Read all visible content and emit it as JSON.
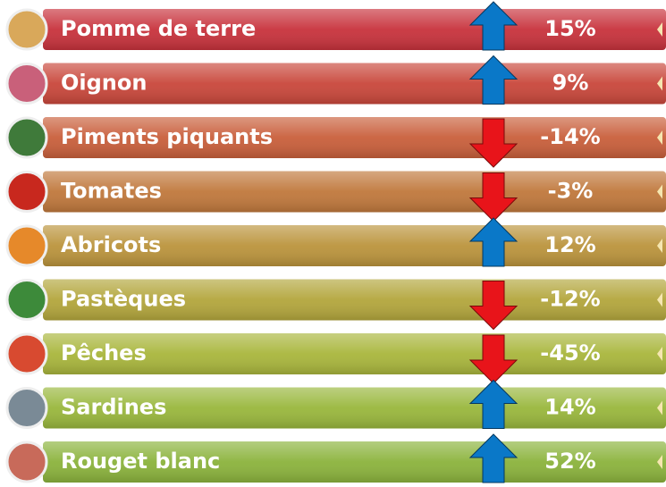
{
  "items": [
    {
      "label": "Pomme de terre",
      "change": "15%",
      "color": "#c8323c",
      "icon": "#d9a85a"
    },
    {
      "label": "Oignon",
      "change": "9%",
      "color": "#c9473b",
      "icon": "#c9607a"
    },
    {
      "label": "Piments  piquants",
      "change": "-14%",
      "color": "#c95f3b",
      "icon": "#3f7a3a"
    },
    {
      "label": "Tomates",
      "change": "-3%",
      "color": "#c0783c",
      "icon": "#c8281e"
    },
    {
      "label": "Abricots",
      "change": "12%",
      "color": "#bb943c",
      "icon": "#e6892a"
    },
    {
      "label": "Pastèques",
      "change": "-12%",
      "color": "#b3a63c",
      "icon": "#3d8a3a"
    },
    {
      "label": "Pêches",
      "change": "-45%",
      "color": "#a9b63c",
      "icon": "#d84a30"
    },
    {
      "label": "Sardines",
      "change": "14%",
      "color": "#99b73c",
      "icon": "#7a8a96"
    },
    {
      "label": "Rouget blanc",
      "change": "52%",
      "color": "#8bb33c",
      "icon": "#c86a5a"
    }
  ]
}
